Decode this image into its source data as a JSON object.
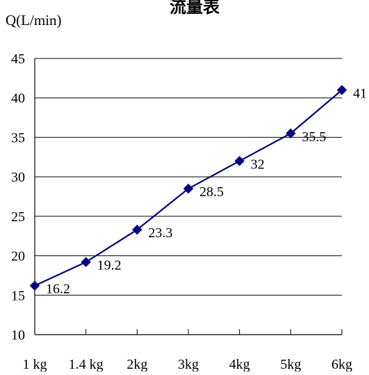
{
  "chart_data": {
    "type": "line",
    "title": "流量表",
    "xlabel": "",
    "ylabel": "Q(L/min)",
    "categories": [
      "1 kg",
      "1.4 kg",
      "2kg",
      "3kg",
      "4kg",
      "5kg",
      "6kg"
    ],
    "series": [
      {
        "values": [
          16.2,
          19.2,
          23.3,
          28.5,
          32,
          35.5,
          41
        ],
        "color": "#000080",
        "marker": "diamond"
      }
    ],
    "data_labels": [
      "16.2",
      "19.2",
      "23.3",
      "28.5",
      "32",
      "35.5",
      "41"
    ],
    "ylim": [
      10,
      45
    ],
    "yticks": [
      10,
      15,
      20,
      25,
      30,
      35,
      40,
      45
    ],
    "grid": true,
    "legend": "none"
  }
}
